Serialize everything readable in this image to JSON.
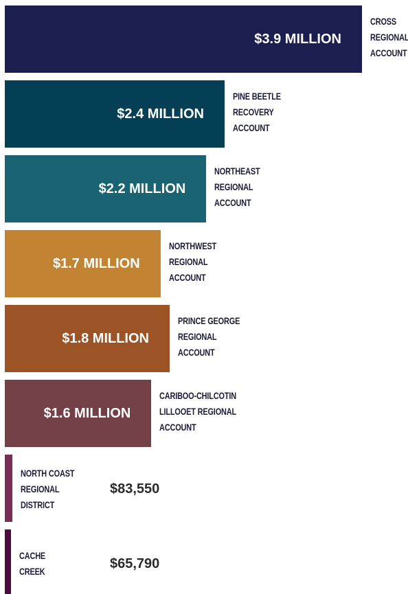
{
  "chart_data": {
    "type": "bar",
    "orientation": "horizontal",
    "categories": [
      "CROSS\nREGIONAL\nACCOUNT",
      "PINE BEETLE\nRECOVERY\nACCOUNT",
      "NORTHEAST\nREGIONAL\nACCOUNT",
      "NORTHWEST\nREGIONAL\nACCOUNT",
      "PRINCE GEORGE\nREGIONAL\nACCOUNT",
      "CARIBOO-CHILCOTIN\nLILLOOET REGIONAL\nACCOUNT",
      "NORTH COAST\nREGIONAL\nDISTRICT",
      "CACHE\nCREEK"
    ],
    "values": [
      3900000,
      2400000,
      2200000,
      1700000,
      1800000,
      1600000,
      83550,
      65790
    ],
    "value_labels": [
      "$3.9 MILLION",
      "$2.4 MILLION",
      "$2.2 MILLION",
      "$1.7 MILLION",
      "$1.8 MILLION",
      "$1.6 MILLION",
      "$83,550",
      "$65,790"
    ],
    "colors": [
      "#1b1f4f",
      "#053f56",
      "#196373",
      "#c28333",
      "#9c5427",
      "#744048",
      "#7b2e55",
      "#4d0a41"
    ]
  }
}
